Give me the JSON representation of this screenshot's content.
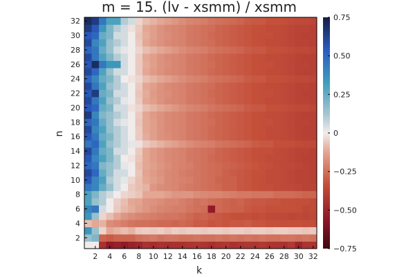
{
  "chart_data": {
    "type": "heatmap",
    "title": "m = 15. (lv - xsmm) / xsmm",
    "xlabel": "k",
    "ylabel": "n",
    "x": [
      1,
      2,
      3,
      4,
      5,
      6,
      7,
      8,
      9,
      10,
      11,
      12,
      13,
      14,
      15,
      16,
      17,
      18,
      19,
      20,
      21,
      22,
      23,
      24,
      25,
      26,
      27,
      28,
      29,
      30,
      31,
      32
    ],
    "y": [
      1,
      2,
      3,
      4,
      5,
      6,
      7,
      8,
      9,
      10,
      11,
      12,
      13,
      14,
      15,
      16,
      17,
      18,
      19,
      20,
      21,
      22,
      23,
      24,
      25,
      26,
      27,
      28,
      29,
      30,
      31,
      32
    ],
    "x_ticks": [
      "2",
      "4",
      "6",
      "8",
      "10",
      "12",
      "14",
      "16",
      "18",
      "20",
      "22",
      "24",
      "26",
      "28",
      "30",
      "32"
    ],
    "y_ticks": [
      "2",
      "4",
      "6",
      "8",
      "10",
      "12",
      "14",
      "16",
      "18",
      "20",
      "22",
      "24",
      "26",
      "28",
      "30",
      "32"
    ],
    "xlim": [
      0.5,
      32.5
    ],
    "ylim": [
      0.5,
      32.5
    ],
    "colorbar": {
      "range": [
        -0.75,
        0.75
      ],
      "ticks": [
        "0.75",
        "0.50",
        "0.25",
        "0",
        "−0.25",
        "−0.50",
        "−0.75"
      ],
      "tick_values": [
        0.75,
        0.5,
        0.25,
        0,
        -0.25,
        -0.5,
        -0.75
      ],
      "colormap": "balance (dark red to white to dark blue)"
    },
    "values": [
      [
        0.0,
        0.0,
        -0.45,
        -0.55,
        -0.52,
        -0.55,
        -0.52,
        -0.5,
        -0.45,
        -0.47,
        -0.45,
        -0.46,
        -0.45,
        -0.45,
        -0.44,
        -0.43,
        -0.44,
        -0.46,
        -0.44,
        -0.43,
        -0.45,
        -0.44,
        -0.43,
        -0.44,
        -0.42,
        -0.44,
        -0.44,
        -0.45,
        -0.42,
        -0.5,
        -0.44,
        -0.44
      ],
      [
        0.15,
        0.2,
        -0.28,
        -0.3,
        -0.28,
        -0.28,
        -0.28,
        -0.25,
        -0.24,
        -0.23,
        -0.25,
        -0.24,
        -0.24,
        -0.25,
        -0.25,
        -0.24,
        -0.25,
        -0.25,
        -0.24,
        -0.25,
        -0.24,
        -0.25,
        -0.24,
        -0.25,
        -0.24,
        -0.25,
        -0.25,
        -0.24,
        -0.24,
        -0.25,
        -0.24,
        -0.25
      ],
      [
        0.35,
        0.15,
        -0.04,
        -0.12,
        -0.1,
        -0.08,
        -0.1,
        -0.06,
        -0.05,
        -0.06,
        -0.05,
        -0.07,
        -0.05,
        -0.06,
        -0.05,
        -0.05,
        -0.06,
        -0.05,
        -0.05,
        -0.06,
        -0.05,
        -0.05,
        -0.06,
        -0.05,
        -0.05,
        -0.06,
        -0.05,
        -0.05,
        -0.06,
        -0.06,
        -0.07,
        -0.06
      ],
      [
        -0.08,
        -0.12,
        -0.1,
        -0.18,
        -0.2,
        -0.22,
        -0.24,
        -0.25,
        -0.25,
        -0.26,
        -0.27,
        -0.27,
        -0.28,
        -0.27,
        -0.28,
        -0.3,
        -0.3,
        -0.32,
        -0.31,
        -0.32,
        -0.31,
        -0.31,
        -0.3,
        -0.32,
        -0.32,
        -0.33,
        -0.33,
        -0.34,
        -0.33,
        -0.33,
        -0.34,
        -0.34
      ],
      [
        0.35,
        0.15,
        -0.04,
        -0.08,
        -0.12,
        -0.16,
        -0.18,
        -0.2,
        -0.21,
        -0.22,
        -0.23,
        -0.24,
        -0.24,
        -0.25,
        -0.27,
        -0.29,
        -0.28,
        -0.3,
        -0.31,
        -0.32,
        -0.33,
        -0.34,
        -0.33,
        -0.35,
        -0.34,
        -0.35,
        -0.36,
        -0.36,
        -0.37,
        -0.36,
        -0.37,
        -0.36
      ],
      [
        0.4,
        0.45,
        0.05,
        0.0,
        -0.06,
        -0.09,
        -0.11,
        -0.14,
        -0.16,
        -0.18,
        -0.2,
        -0.21,
        -0.22,
        -0.22,
        -0.24,
        -0.25,
        -0.26,
        -0.55,
        -0.27,
        -0.28,
        -0.29,
        -0.29,
        -0.31,
        -0.32,
        -0.32,
        -0.33,
        -0.33,
        -0.33,
        -0.33,
        -0.34,
        -0.36,
        -0.35
      ],
      [
        0.3,
        0.15,
        0.1,
        0.0,
        -0.05,
        -0.08,
        -0.12,
        -0.13,
        -0.16,
        -0.17,
        -0.18,
        -0.2,
        -0.2,
        -0.22,
        -0.23,
        -0.25,
        -0.24,
        -0.26,
        -0.27,
        -0.28,
        -0.29,
        -0.28,
        -0.3,
        -0.31,
        -0.31,
        -0.32,
        -0.32,
        -0.33,
        -0.33,
        -0.34,
        -0.34,
        -0.35
      ],
      [
        0.3,
        0.2,
        0.1,
        0.05,
        0.0,
        -0.04,
        -0.05,
        -0.07,
        -0.12,
        -0.12,
        -0.12,
        -0.14,
        -0.16,
        -0.16,
        -0.16,
        -0.18,
        -0.19,
        -0.2,
        -0.2,
        -0.21,
        -0.22,
        -0.23,
        -0.23,
        -0.24,
        -0.24,
        -0.24,
        -0.26,
        -0.26,
        -0.26,
        -0.27,
        -0.28,
        -0.28
      ],
      [
        0.45,
        0.4,
        0.25,
        0.15,
        0.05,
        0.0,
        -0.06,
        -0.08,
        -0.1,
        -0.16,
        -0.18,
        -0.19,
        -0.2,
        -0.22,
        -0.23,
        -0.24,
        -0.25,
        -0.26,
        -0.27,
        -0.29,
        -0.29,
        -0.31,
        -0.32,
        -0.33,
        -0.34,
        -0.34,
        -0.35,
        -0.36,
        -0.36,
        -0.37,
        -0.38,
        -0.38
      ],
      [
        0.55,
        0.4,
        0.3,
        0.1,
        0.05,
        0.02,
        -0.04,
        -0.08,
        -0.12,
        -0.14,
        -0.16,
        -0.19,
        -0.2,
        -0.21,
        -0.22,
        -0.24,
        -0.25,
        -0.26,
        -0.28,
        -0.29,
        -0.29,
        -0.31,
        -0.32,
        -0.33,
        -0.34,
        -0.35,
        -0.35,
        -0.36,
        -0.37,
        -0.38,
        -0.38,
        -0.39
      ],
      [
        0.6,
        0.5,
        0.25,
        0.15,
        0.05,
        0.05,
        0.0,
        -0.07,
        -0.13,
        -0.15,
        -0.17,
        -0.19,
        -0.2,
        -0.22,
        -0.23,
        -0.24,
        -0.25,
        -0.26,
        -0.27,
        -0.29,
        -0.3,
        -0.31,
        -0.32,
        -0.33,
        -0.33,
        -0.35,
        -0.35,
        -0.36,
        -0.37,
        -0.38,
        -0.38,
        -0.39
      ],
      [
        0.5,
        0.45,
        0.2,
        0.15,
        0.1,
        0.02,
        0.0,
        -0.08,
        -0.12,
        -0.14,
        -0.16,
        -0.18,
        -0.2,
        -0.21,
        -0.22,
        -0.24,
        -0.25,
        -0.26,
        -0.27,
        -0.28,
        -0.29,
        -0.3,
        -0.31,
        -0.32,
        -0.33,
        -0.34,
        -0.35,
        -0.36,
        -0.36,
        -0.37,
        -0.38,
        -0.39
      ],
      [
        0.55,
        0.4,
        0.3,
        0.2,
        0.1,
        0.0,
        -0.02,
        -0.07,
        -0.12,
        -0.15,
        -0.17,
        -0.19,
        -0.2,
        -0.21,
        -0.23,
        -0.24,
        -0.25,
        -0.27,
        -0.28,
        -0.29,
        -0.3,
        -0.31,
        -0.32,
        -0.33,
        -0.34,
        -0.35,
        -0.35,
        -0.36,
        -0.37,
        -0.38,
        -0.39,
        -0.39
      ],
      [
        0.6,
        0.45,
        0.25,
        0.2,
        0.05,
        0.05,
        0.0,
        -0.06,
        -0.12,
        -0.15,
        -0.17,
        -0.19,
        -0.2,
        -0.21,
        -0.23,
        -0.24,
        -0.25,
        -0.26,
        -0.28,
        -0.29,
        -0.3,
        -0.31,
        -0.32,
        -0.33,
        -0.34,
        -0.34,
        -0.35,
        -0.36,
        -0.37,
        -0.38,
        -0.38,
        -0.39
      ],
      [
        0.45,
        0.5,
        0.3,
        0.15,
        0.1,
        0.05,
        0.02,
        -0.02,
        -0.06,
        -0.08,
        -0.1,
        -0.12,
        -0.14,
        -0.16,
        -0.18,
        -0.2,
        -0.21,
        -0.22,
        -0.24,
        -0.25,
        -0.26,
        -0.27,
        -0.28,
        -0.3,
        -0.31,
        -0.31,
        -0.33,
        -0.33,
        -0.34,
        -0.35,
        -0.36,
        -0.36
      ],
      [
        0.55,
        0.45,
        0.25,
        0.2,
        0.1,
        0.05,
        0.0,
        -0.06,
        -0.11,
        -0.14,
        -0.17,
        -0.18,
        -0.2,
        -0.21,
        -0.23,
        -0.24,
        -0.25,
        -0.27,
        -0.28,
        -0.29,
        -0.3,
        -0.31,
        -0.32,
        -0.33,
        -0.34,
        -0.35,
        -0.35,
        -0.36,
        -0.37,
        -0.38,
        -0.39,
        -0.39
      ],
      [
        0.6,
        0.4,
        0.3,
        0.15,
        0.1,
        0.05,
        0.0,
        -0.06,
        -0.12,
        -0.14,
        -0.17,
        -0.19,
        -0.2,
        -0.21,
        -0.23,
        -0.24,
        -0.25,
        -0.27,
        -0.28,
        -0.29,
        -0.3,
        -0.31,
        -0.32,
        -0.33,
        -0.34,
        -0.35,
        -0.35,
        -0.36,
        -0.37,
        -0.38,
        -0.39,
        -0.39
      ],
      [
        0.5,
        0.45,
        0.25,
        0.15,
        0.05,
        0.02,
        0.0,
        -0.07,
        -0.12,
        -0.14,
        -0.17,
        -0.19,
        -0.2,
        -0.21,
        -0.23,
        -0.24,
        -0.25,
        -0.26,
        -0.28,
        -0.29,
        -0.3,
        -0.31,
        -0.32,
        -0.33,
        -0.34,
        -0.34,
        -0.35,
        -0.36,
        -0.37,
        -0.38,
        -0.38,
        -0.39
      ],
      [
        0.65,
        0.4,
        0.2,
        0.15,
        0.1,
        0.05,
        0.0,
        -0.06,
        -0.12,
        -0.15,
        -0.17,
        -0.19,
        -0.2,
        -0.21,
        -0.23,
        -0.24,
        -0.25,
        -0.27,
        -0.28,
        -0.29,
        -0.3,
        -0.31,
        -0.32,
        -0.33,
        -0.34,
        -0.35,
        -0.35,
        -0.36,
        -0.37,
        -0.38,
        -0.39,
        -0.39
      ],
      [
        0.55,
        0.5,
        0.25,
        0.2,
        0.05,
        0.05,
        -0.02,
        -0.04,
        -0.08,
        -0.1,
        -0.12,
        -0.14,
        -0.16,
        -0.18,
        -0.2,
        -0.21,
        -0.22,
        -0.24,
        -0.25,
        -0.26,
        -0.27,
        -0.28,
        -0.3,
        -0.31,
        -0.31,
        -0.33,
        -0.33,
        -0.34,
        -0.35,
        -0.36,
        -0.36,
        -0.37
      ],
      [
        0.6,
        0.45,
        0.3,
        0.15,
        0.1,
        0.02,
        0.0,
        -0.06,
        -0.12,
        -0.14,
        -0.17,
        -0.19,
        -0.2,
        -0.21,
        -0.23,
        -0.24,
        -0.25,
        -0.26,
        -0.28,
        -0.29,
        -0.3,
        -0.31,
        -0.32,
        -0.33,
        -0.34,
        -0.35,
        -0.35,
        -0.36,
        -0.37,
        -0.38,
        -0.38,
        -0.39
      ],
      [
        0.55,
        0.65,
        0.25,
        0.2,
        0.05,
        0.05,
        0.0,
        -0.07,
        -0.11,
        -0.15,
        -0.17,
        -0.18,
        -0.2,
        -0.21,
        -0.23,
        -0.24,
        -0.25,
        -0.27,
        -0.28,
        -0.29,
        -0.3,
        -0.31,
        -0.32,
        -0.33,
        -0.34,
        -0.34,
        -0.35,
        -0.36,
        -0.37,
        -0.38,
        -0.39,
        -0.39
      ],
      [
        0.6,
        0.45,
        0.3,
        0.15,
        0.1,
        0.05,
        0.0,
        -0.06,
        -0.12,
        -0.14,
        -0.17,
        -0.19,
        -0.2,
        -0.21,
        -0.23,
        -0.24,
        -0.25,
        -0.26,
        -0.28,
        -0.29,
        -0.3,
        -0.31,
        -0.32,
        -0.33,
        -0.34,
        -0.35,
        -0.35,
        -0.36,
        -0.37,
        -0.38,
        -0.38,
        -0.39
      ],
      [
        0.5,
        0.4,
        0.25,
        0.2,
        0.1,
        0.0,
        -0.02,
        -0.04,
        -0.08,
        -0.1,
        -0.12,
        -0.14,
        -0.16,
        -0.18,
        -0.2,
        -0.21,
        -0.22,
        -0.24,
        -0.25,
        -0.26,
        -0.27,
        -0.28,
        -0.3,
        -0.31,
        -0.31,
        -0.33,
        -0.33,
        -0.34,
        -0.35,
        -0.36,
        -0.36,
        -0.37
      ],
      [
        0.6,
        0.5,
        0.3,
        0.15,
        0.05,
        0.05,
        0.0,
        -0.06,
        -0.12,
        -0.15,
        -0.17,
        -0.19,
        -0.2,
        -0.21,
        -0.23,
        -0.24,
        -0.25,
        -0.27,
        -0.28,
        -0.29,
        -0.3,
        -0.31,
        -0.32,
        -0.33,
        -0.34,
        -0.35,
        -0.35,
        -0.36,
        -0.37,
        -0.38,
        -0.39,
        -0.39
      ],
      [
        0.55,
        0.7,
        0.45,
        0.35,
        0.35,
        0.05,
        0.0,
        -0.06,
        -0.11,
        -0.14,
        -0.17,
        -0.18,
        -0.2,
        -0.21,
        -0.23,
        -0.24,
        -0.25,
        -0.26,
        -0.28,
        -0.29,
        -0.3,
        -0.31,
        -0.32,
        -0.33,
        -0.34,
        -0.34,
        -0.35,
        -0.36,
        -0.37,
        -0.38,
        -0.38,
        -0.39
      ],
      [
        0.6,
        0.45,
        0.3,
        0.2,
        0.1,
        0.05,
        0.0,
        -0.06,
        -0.12,
        -0.14,
        -0.17,
        -0.19,
        -0.2,
        -0.21,
        -0.23,
        -0.24,
        -0.25,
        -0.27,
        -0.28,
        -0.29,
        -0.3,
        -0.31,
        -0.32,
        -0.33,
        -0.34,
        -0.35,
        -0.35,
        -0.36,
        -0.37,
        -0.38,
        -0.39,
        -0.39
      ],
      [
        0.5,
        0.45,
        0.25,
        0.15,
        0.05,
        0.02,
        0.0,
        -0.04,
        -0.08,
        -0.1,
        -0.12,
        -0.14,
        -0.16,
        -0.18,
        -0.2,
        -0.21,
        -0.22,
        -0.24,
        -0.25,
        -0.26,
        -0.27,
        -0.28,
        -0.3,
        -0.31,
        -0.31,
        -0.33,
        -0.33,
        -0.34,
        -0.35,
        -0.36,
        -0.36,
        -0.37
      ],
      [
        0.6,
        0.4,
        0.3,
        0.15,
        0.1,
        0.05,
        0.0,
        -0.06,
        -0.12,
        -0.15,
        -0.17,
        -0.19,
        -0.2,
        -0.21,
        -0.23,
        -0.24,
        -0.25,
        -0.26,
        -0.28,
        -0.29,
        -0.3,
        -0.31,
        -0.32,
        -0.33,
        -0.34,
        -0.35,
        -0.35,
        -0.36,
        -0.37,
        -0.38,
        -0.38,
        -0.39
      ],
      [
        0.55,
        0.5,
        0.25,
        0.2,
        0.05,
        0.05,
        0.0,
        -0.07,
        -0.11,
        -0.14,
        -0.17,
        -0.18,
        -0.2,
        -0.21,
        -0.23,
        -0.24,
        -0.25,
        -0.27,
        -0.28,
        -0.29,
        -0.3,
        -0.31,
        -0.32,
        -0.33,
        -0.34,
        -0.34,
        -0.35,
        -0.36,
        -0.37,
        -0.38,
        -0.39,
        -0.39
      ],
      [
        0.65,
        0.55,
        0.35,
        0.2,
        0.1,
        0.05,
        -0.02,
        -0.06,
        -0.12,
        -0.14,
        -0.17,
        -0.19,
        -0.2,
        -0.21,
        -0.23,
        -0.24,
        -0.25,
        -0.26,
        -0.28,
        -0.29,
        -0.3,
        -0.31,
        -0.32,
        -0.33,
        -0.34,
        -0.35,
        -0.35,
        -0.36,
        -0.37,
        -0.38,
        -0.38,
        -0.39
      ],
      [
        0.7,
        0.65,
        0.45,
        0.3,
        0.3,
        0.1,
        0.05,
        -0.04,
        -0.08,
        -0.1,
        -0.12,
        -0.14,
        -0.16,
        -0.18,
        -0.2,
        -0.21,
        -0.22,
        -0.24,
        -0.25,
        -0.26,
        -0.27,
        -0.28,
        -0.3,
        -0.31,
        -0.31,
        -0.33,
        -0.33,
        -0.34,
        -0.35,
        -0.36,
        -0.36,
        -0.37
      ]
    ]
  }
}
